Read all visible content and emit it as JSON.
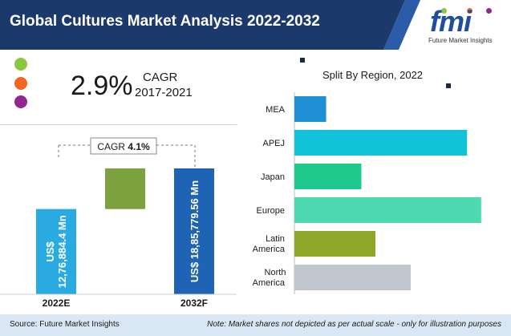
{
  "header": {
    "title": "Global Cultures Market Analysis 2022-2032",
    "band_color": "#1b3a6b",
    "logo_text": "fmi",
    "logo_subtitle": "Future Market Insights"
  },
  "cagr_panel": {
    "value": "2.9%",
    "label": "CAGR",
    "years": "2017-2021",
    "bullet_colors": [
      "#8dc63f",
      "#f26522",
      "#92278f"
    ]
  },
  "market_chart": {
    "cagr_box_prefix": "CAGR ",
    "cagr_box_value": "4.1%",
    "bars": [
      {
        "category": "2022E",
        "value_text": "US$ 12,76,884.4 Mn",
        "value": 1276884.4,
        "color": "#29abe2"
      },
      {
        "category": "2032F",
        "value_text": "US$ 18,85,779.56 Mn",
        "value": 1885779.56,
        "color": "#1f63b5"
      }
    ],
    "increment_color": "#7ba23f"
  },
  "chart_data": {
    "type": "bar",
    "title": "Split By Region, 2022",
    "orientation": "horizontal",
    "categories": [
      "MEA",
      "APEJ",
      "Japan",
      "Europe",
      "Latin America",
      "North America"
    ],
    "category_lines": [
      [
        "MEA"
      ],
      [
        "APEJ"
      ],
      [
        "Japan"
      ],
      [
        "Europe"
      ],
      [
        "Latin",
        "America"
      ],
      [
        "North",
        "America"
      ]
    ],
    "values": [
      4.5,
      24.5,
      9.5,
      26.5,
      11.5,
      16.5
    ],
    "colors": [
      "#1f8fd6",
      "#12c2d9",
      "#1fc98e",
      "#4ed9b0",
      "#8fa829",
      "#c2c6d0"
    ],
    "xlim": [
      0,
      28
    ],
    "grid": false,
    "legend": "none"
  },
  "footer": {
    "source": "Source: Future Market Insights",
    "note": "Note: Market shares not depicted as per actual scale - only for illustration purposes"
  }
}
